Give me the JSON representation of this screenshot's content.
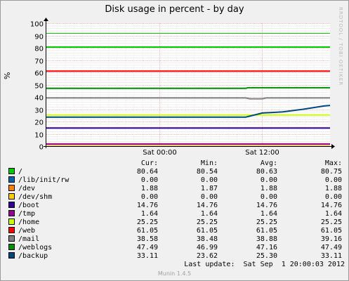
{
  "window": {
    "title": "Disk usage in percent - by day",
    "watermark": "RRDTOOL / TOBI OETIKER",
    "version": "Munin 1.4.5"
  },
  "legend": {
    "headers": {
      "cur": "Cur:",
      "min": "Min:",
      "avg": "Avg:",
      "max": "Max:"
    },
    "rows": [
      {
        "name": "/",
        "color": "#00cc00",
        "cur": "80.64",
        "min": "80.54",
        "avg": "80.63",
        "max": "80.75"
      },
      {
        "name": "/lib/init/rw",
        "color": "#0066b3",
        "cur": "0.00",
        "min": "0.00",
        "avg": "0.00",
        "max": "0.00"
      },
      {
        "name": "/dev",
        "color": "#ff8000",
        "cur": "1.88",
        "min": "1.87",
        "avg": "1.88",
        "max": "1.88"
      },
      {
        "name": "/dev/shm",
        "color": "#ffcc00",
        "cur": "0.00",
        "min": "0.00",
        "avg": "0.00",
        "max": "0.00"
      },
      {
        "name": "/boot",
        "color": "#330099",
        "cur": "14.76",
        "min": "14.76",
        "avg": "14.76",
        "max": "14.76"
      },
      {
        "name": "/tmp",
        "color": "#990099",
        "cur": "1.64",
        "min": "1.64",
        "avg": "1.64",
        "max": "1.64"
      },
      {
        "name": "/home",
        "color": "#ccff00",
        "cur": "25.25",
        "min": "25.25",
        "avg": "25.25",
        "max": "25.25"
      },
      {
        "name": "/web",
        "color": "#ff0000",
        "cur": "61.05",
        "min": "61.05",
        "avg": "61.05",
        "max": "61.05"
      },
      {
        "name": "/mail",
        "color": "#808080",
        "cur": "38.58",
        "min": "38.48",
        "avg": "38.88",
        "max": "39.16"
      },
      {
        "name": "/weblogs",
        "color": "#008f00",
        "cur": "47.49",
        "min": "46.99",
        "avg": "47.16",
        "max": "47.49"
      },
      {
        "name": "/backup",
        "color": "#00487d",
        "cur": "33.11",
        "min": "23.62",
        "avg": "25.30",
        "max": "33.11"
      }
    ]
  },
  "last_update": "Last update:  Sat Sep  1 20:00:03 2012",
  "chart_data": {
    "type": "line",
    "title": "Disk usage in percent - by day",
    "ylabel": "%",
    "xlabel": "",
    "ylim": [
      0,
      100
    ],
    "yticks": [
      0,
      10,
      20,
      30,
      40,
      50,
      60,
      70,
      80,
      90,
      100
    ],
    "xlim": [
      -0.55,
      0.83
    ],
    "xticks": [
      {
        "value": 0,
        "label": "Sat 00:00"
      },
      {
        "value": 0.5,
        "label": "Sat 12:00"
      }
    ],
    "grid": true,
    "hrule": {
      "value": 92,
      "color": "#00cc00"
    },
    "series": [
      {
        "name": "/",
        "color": "#00cc00",
        "x": [
          -0.55,
          0.83
        ],
        "y": [
          80.6,
          80.6
        ]
      },
      {
        "name": "/lib/init/rw",
        "color": "#0066b3",
        "x": [
          -0.55,
          0.83
        ],
        "y": [
          0,
          0
        ]
      },
      {
        "name": "/dev",
        "color": "#ff8000",
        "x": [
          -0.55,
          0.83
        ],
        "y": [
          1.88,
          1.88
        ]
      },
      {
        "name": "/dev/shm",
        "color": "#ffcc00",
        "x": [
          -0.55,
          0.83
        ],
        "y": [
          0,
          0
        ]
      },
      {
        "name": "/boot",
        "color": "#330099",
        "x": [
          -0.55,
          0.83
        ],
        "y": [
          14.76,
          14.76
        ]
      },
      {
        "name": "/tmp",
        "color": "#990099",
        "x": [
          -0.55,
          0.83
        ],
        "y": [
          1.64,
          1.64
        ]
      },
      {
        "name": "/home",
        "color": "#ccff00",
        "x": [
          -0.55,
          0.83
        ],
        "y": [
          25.25,
          25.25
        ]
      },
      {
        "name": "/web",
        "color": "#ff0000",
        "x": [
          -0.55,
          0.83
        ],
        "y": [
          61.05,
          61.05
        ]
      },
      {
        "name": "/mail",
        "color": "#808080",
        "x": [
          -0.55,
          0.42,
          0.44,
          0.5,
          0.52,
          0.83
        ],
        "y": [
          39.2,
          39.2,
          38.5,
          38.5,
          39.2,
          39.2
        ]
      },
      {
        "name": "/weblogs",
        "color": "#008f00",
        "x": [
          -0.55,
          0.42,
          0.43,
          0.83
        ],
        "y": [
          47.0,
          47.0,
          47.49,
          47.49
        ]
      },
      {
        "name": "/backup",
        "color": "#00487d",
        "x": [
          -0.55,
          0.42,
          0.5,
          0.6,
          0.7,
          0.8,
          0.83
        ],
        "y": [
          23.6,
          23.6,
          26.9,
          27.8,
          30.0,
          32.6,
          33.1
        ]
      }
    ]
  }
}
